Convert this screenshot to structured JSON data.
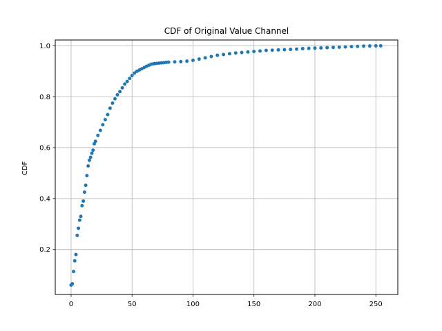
{
  "chart_data": {
    "type": "scatter",
    "title": "CDF of Original Value Channel",
    "xlabel": "",
    "ylabel": "CDF",
    "xlim": [
      -13,
      268
    ],
    "ylim": [
      0.023,
      1.023
    ],
    "xticks": [
      0,
      50,
      100,
      150,
      200,
      250
    ],
    "yticks": [
      0.2,
      0.4,
      0.6,
      0.8,
      1.0
    ],
    "xtick_labels": [
      "0",
      "50",
      "100",
      "150",
      "200",
      "250"
    ],
    "ytick_labels": [
      "0.2",
      "0.4",
      "0.6",
      "0.8",
      "1.0"
    ],
    "grid": true,
    "color": "#1f77b4",
    "x": [
      0,
      1,
      2,
      3,
      4,
      5,
      6,
      7,
      8,
      9,
      10,
      11,
      12,
      13,
      14,
      15,
      16,
      17,
      18,
      19,
      20,
      22,
      24,
      26,
      28,
      30,
      32,
      34,
      36,
      38,
      40,
      42,
      44,
      46,
      48,
      50,
      52,
      54,
      56,
      58,
      60,
      62,
      64,
      66,
      68,
      70,
      72,
      74,
      76,
      78,
      80,
      85,
      90,
      95,
      100,
      105,
      110,
      115,
      120,
      125,
      130,
      135,
      140,
      145,
      150,
      155,
      160,
      165,
      170,
      175,
      180,
      185,
      190,
      195,
      200,
      205,
      210,
      215,
      220,
      225,
      230,
      235,
      240,
      245,
      250,
      254
    ],
    "y": [
      0.06,
      0.065,
      0.113,
      0.155,
      0.18,
      0.255,
      0.283,
      0.315,
      0.33,
      0.372,
      0.39,
      0.425,
      0.452,
      0.49,
      0.528,
      0.55,
      0.562,
      0.578,
      0.59,
      0.615,
      0.625,
      0.648,
      0.668,
      0.69,
      0.71,
      0.73,
      0.755,
      0.775,
      0.792,
      0.808,
      0.82,
      0.835,
      0.85,
      0.86,
      0.872,
      0.883,
      0.893,
      0.9,
      0.905,
      0.91,
      0.915,
      0.92,
      0.924,
      0.928,
      0.93,
      0.931,
      0.932,
      0.933,
      0.934,
      0.935,
      0.936,
      0.937,
      0.938,
      0.94,
      0.943,
      0.948,
      0.953,
      0.958,
      0.963,
      0.966,
      0.969,
      0.972,
      0.974,
      0.976,
      0.978,
      0.98,
      0.982,
      0.983,
      0.984,
      0.985,
      0.986,
      0.987,
      0.989,
      0.99,
      0.991,
      0.992,
      0.993,
      0.994,
      0.995,
      0.996,
      0.997,
      0.998,
      0.999,
      0.9995,
      1.0,
      1.0
    ]
  }
}
